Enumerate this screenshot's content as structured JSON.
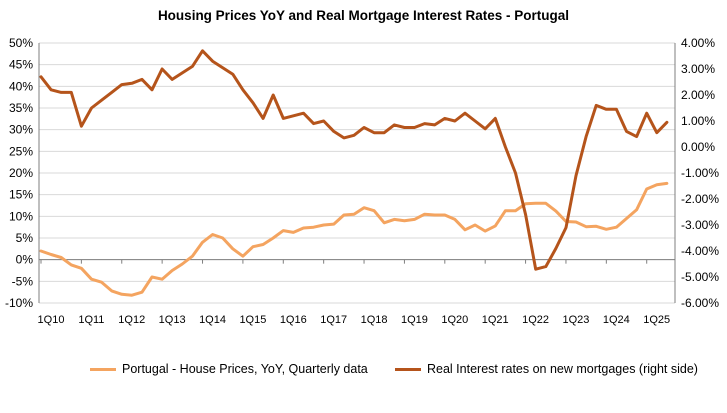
{
  "chart_data": {
    "type": "line",
    "title": "Housing Prices YoY and Real Mortgage Interest Rates -  Portugal",
    "xlabel": "",
    "ylabel": "",
    "x_tick_labels": [
      "1Q10",
      "1Q11",
      "1Q12",
      "1Q13",
      "1Q14",
      "1Q15",
      "1Q16",
      "1Q17",
      "1Q18",
      "1Q19",
      "1Q20",
      "1Q21",
      "1Q22",
      "1Q23",
      "1Q24",
      "1Q25"
    ],
    "y_left": {
      "ticks": [
        "-10%",
        "-5%",
        "0%",
        "5%",
        "10%",
        "15%",
        "20%",
        "25%",
        "30%",
        "35%",
        "40%",
        "45%",
        "50%"
      ],
      "range": [
        -10,
        50
      ]
    },
    "y_right": {
      "ticks": [
        "-6.00%",
        "-5.00%",
        "-4.00%",
        "-3.00%",
        "-2.00%",
        "-1.00%",
        "0.00%",
        "1.00%",
        "2.00%",
        "3.00%",
        "4.00%"
      ],
      "range": [
        -6,
        4
      ]
    },
    "grid": true,
    "legend_position": "bottom",
    "series": [
      {
        "name": "Portugal - House Prices, YoY, Quarterly data",
        "axis": "left",
        "color": "#f4a460",
        "start": "1Q10",
        "values": [
          2.0,
          1.2,
          0.5,
          -1.2,
          -2.0,
          -4.5,
          -5.2,
          -7.2,
          -8.0,
          -8.2,
          -7.5,
          -4.0,
          -4.5,
          -2.5,
          -1.0,
          0.8,
          4.0,
          5.8,
          5.0,
          2.5,
          0.8,
          3.0,
          3.5,
          5.0,
          6.7,
          6.3,
          7.3,
          7.5,
          8.0,
          8.2,
          10.3,
          10.5,
          12.0,
          11.3,
          8.5,
          9.3,
          9.0,
          9.3,
          10.5,
          10.3,
          10.3,
          9.3,
          6.9,
          8.0,
          6.6,
          7.8,
          11.3,
          11.3,
          12.9,
          13.0,
          13.0,
          11.2,
          8.8,
          8.7,
          7.6,
          7.7,
          7.0,
          7.5,
          9.5,
          11.5,
          16.3,
          17.3,
          17.6
        ]
      },
      {
        "name": "Real Interest rates on new mortgages (right side)",
        "axis": "right",
        "color": "#b5541b",
        "start": "1Q10",
        "values": [
          2.7,
          2.2,
          2.1,
          2.1,
          0.8,
          1.5,
          1.8,
          2.1,
          2.4,
          2.45,
          2.6,
          2.2,
          3.0,
          2.6,
          2.85,
          3.1,
          3.7,
          3.3,
          3.05,
          2.8,
          2.2,
          1.7,
          1.1,
          2.0,
          1.1,
          1.2,
          1.3,
          0.9,
          1.0,
          0.6,
          0.35,
          0.45,
          0.75,
          0.55,
          0.55,
          0.85,
          0.75,
          0.75,
          0.9,
          0.85,
          1.1,
          1.0,
          1.3,
          1.0,
          0.7,
          1.1,
          0.0,
          -1.0,
          -2.6,
          -4.7,
          -4.6,
          -3.9,
          -3.1,
          -1.1,
          0.4,
          1.6,
          1.45,
          1.45,
          0.6,
          0.4,
          1.3,
          0.55,
          0.95
        ]
      }
    ]
  }
}
